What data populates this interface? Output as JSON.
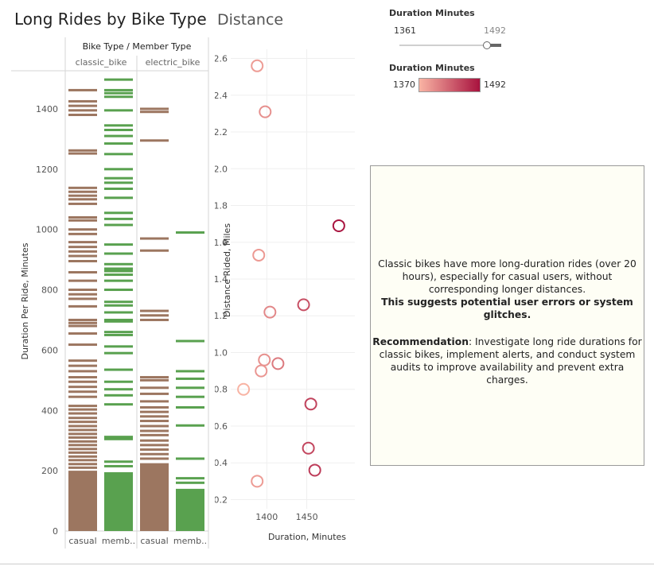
{
  "titles": {
    "left": "Long Rides by Bike Type",
    "right": "Distance"
  },
  "header": {
    "dimension_label": "Bike Type / Member Type",
    "bike_types": [
      "classic_bike",
      "electric_bike"
    ],
    "member_types": [
      "casual",
      "memb.."
    ]
  },
  "filter": {
    "title": "Duration Minutes",
    "min_label": "1361",
    "max_label": "1492",
    "value_fraction": 1.0
  },
  "color_legend": {
    "title": "Duration Minutes",
    "min_label": "1370",
    "max_label": "1492",
    "color_low": "#f9b4a4",
    "color_high": "#a8123e"
  },
  "note": {
    "line1": "Classic bikes have more long-duration rides (over 20 hours), especially for casual users, without corresponding longer distances.",
    "line2_bold": "This suggests potential user errors or system glitches.",
    "rec_label": "Recommendation",
    "rec_text": ": Investigate long ride durations for classic bikes, implement alerts, and conduct system audits to improve availability and prevent extra charges."
  },
  "chart_data": [
    {
      "type": "bar",
      "ylabel": "Duration Per Ride, Minutes",
      "ylim": [
        0,
        1500
      ],
      "yticks": [
        "0",
        "200",
        "400",
        "600",
        "800",
        "1000",
        "1200",
        "1400"
      ],
      "colors": {
        "casual": "#9c7660",
        "member": "#59a14f"
      },
      "panels": [
        {
          "bike_type": "classic_bike",
          "member_type": "casual",
          "bar_top": 200,
          "ride_durations": [
            210,
            222,
            235,
            247,
            260,
            272,
            285,
            297,
            310,
            322,
            335,
            348,
            362,
            375,
            390,
            403,
            415,
            445,
            462,
            478,
            495,
            510,
            530,
            548,
            565,
            618,
            655,
            680,
            690,
            700,
            745,
            770,
            785,
            800,
            830,
            858,
            895,
            912,
            927,
            942,
            958,
            985,
            1000,
            1030,
            1040,
            1085,
            1100,
            1112,
            1125,
            1138,
            1252,
            1262,
            1380,
            1395,
            1410,
            1425,
            1462
          ]
        },
        {
          "bike_type": "classic_bike",
          "member_type": "member",
          "bar_top": 195,
          "ride_durations": [
            215,
            230,
            305,
            312,
            420,
            450,
            470,
            495,
            535,
            590,
            612,
            650,
            660,
            695,
            700,
            725,
            748,
            760,
            800,
            830,
            850,
            862,
            870,
            885,
            920,
            950,
            1015,
            1035,
            1055,
            1105,
            1135,
            1155,
            1170,
            1200,
            1250,
            1285,
            1310,
            1330,
            1345,
            1395,
            1440,
            1452,
            1462,
            1497
          ]
        },
        {
          "bike_type": "electric_bike",
          "member_type": "casual",
          "bar_top": 225,
          "ride_durations": [
            240,
            255,
            270,
            285,
            300,
            318,
            332,
            348,
            365,
            380,
            395,
            410,
            430,
            455,
            475,
            500,
            510,
            700,
            715,
            730,
            930,
            970,
            1295,
            1390,
            1400
          ]
        },
        {
          "bike_type": "electric_bike",
          "member_type": "member",
          "bar_top": 140,
          "ride_durations": [
            160,
            175,
            240,
            350,
            410,
            445,
            475,
            505,
            530,
            630,
            990
          ]
        }
      ]
    },
    {
      "type": "scatter",
      "title": "Distance",
      "xlabel": "Duration, Minutes",
      "ylabel": "Distance Rided, Miles",
      "xlim": [
        1355,
        1510
      ],
      "ylim": [
        0.15,
        2.65
      ],
      "xticks": [
        "1400",
        "1450"
      ],
      "yticks": [
        "0.2",
        "0.4",
        "0.6",
        "0.8",
        "1.0",
        "1.2",
        "1.4",
        "1.6",
        "1.8",
        "2.0",
        "2.2",
        "2.4",
        "2.6"
      ],
      "points": [
        {
          "x": 1388,
          "y": 2.56,
          "duration": 1388
        },
        {
          "x": 1398,
          "y": 2.31,
          "duration": 1398
        },
        {
          "x": 1490,
          "y": 1.69,
          "duration": 1490
        },
        {
          "x": 1390,
          "y": 1.53,
          "duration": 1390
        },
        {
          "x": 1446,
          "y": 1.26,
          "duration": 1446
        },
        {
          "x": 1404,
          "y": 1.22,
          "duration": 1404
        },
        {
          "x": 1397,
          "y": 0.96,
          "duration": 1397
        },
        {
          "x": 1414,
          "y": 0.94,
          "duration": 1414
        },
        {
          "x": 1393,
          "y": 0.9,
          "duration": 1393
        },
        {
          "x": 1371,
          "y": 0.8,
          "duration": 1371
        },
        {
          "x": 1455,
          "y": 0.72,
          "duration": 1455
        },
        {
          "x": 1452,
          "y": 0.48,
          "duration": 1452
        },
        {
          "x": 1460,
          "y": 0.36,
          "duration": 1460
        },
        {
          "x": 1388,
          "y": 0.3,
          "duration": 1388
        }
      ]
    }
  ]
}
